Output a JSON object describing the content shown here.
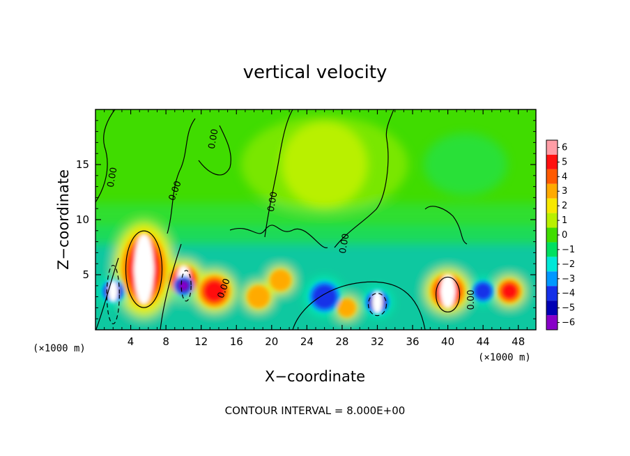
{
  "chart_data": {
    "type": "heatmap",
    "title": "vertical velocity",
    "xlabel": "X−coordinate",
    "ylabel": "Z−coordinate",
    "x_unit_label": "(×1000 m)",
    "x_unit_label_right": "(×1000 m)",
    "xlim": [
      0,
      50
    ],
    "ylim": [
      0,
      20
    ],
    "x_ticks": [
      4,
      8,
      12,
      16,
      20,
      24,
      28,
      32,
      36,
      40,
      44,
      48
    ],
    "y_ticks": [
      5,
      10,
      15
    ],
    "colorbar": {
      "levels": [
        "6",
        "5",
        "4",
        "3",
        "2",
        "1",
        "0",
        "−1",
        "−2",
        "−3",
        "−4",
        "−5",
        "−6"
      ],
      "colors": [
        "#ff9da6",
        "#ff1010",
        "#ff5a00",
        "#ffaa00",
        "#f7e800",
        "#b9f000",
        "#40dc00",
        "#00e060",
        "#00e8d8",
        "#0098ff",
        "#1530e8",
        "#0000b4",
        "#8800c8"
      ]
    },
    "contour_labels": [
      "0.00",
      "0.00",
      "0.00",
      "0.00",
      "0.00",
      "0.00",
      "0.00"
    ],
    "features": [
      {
        "x": 5.5,
        "z": 5.5,
        "w": 0.26,
        "value": 22
      },
      {
        "x": 10.0,
        "z": 4.5,
        "w": 0.15,
        "value": 8
      },
      {
        "x": 13.5,
        "z": 3.5,
        "w": 0.16,
        "value": 5
      },
      {
        "x": 18.5,
        "z": 3.0,
        "w": 0.09,
        "value": 3
      },
      {
        "x": 21.0,
        "z": 4.5,
        "w": 0.08,
        "value": 3
      },
      {
        "x": 28.5,
        "z": 2.0,
        "w": 0.06,
        "value": 3
      },
      {
        "x": 40.0,
        "z": 3.5,
        "w": 0.18,
        "value": 10
      },
      {
        "x": 47.0,
        "z": 3.5,
        "w": 0.1,
        "value": 5
      },
      {
        "x": 2.0,
        "z": 3.5,
        "w": 0.09,
        "value": -14
      },
      {
        "x": 10.0,
        "z": 4.0,
        "w": 0.07,
        "value": -6
      },
      {
        "x": 32.0,
        "z": 2.5,
        "w": 0.1,
        "value": -10
      },
      {
        "x": 26.0,
        "z": 3.0,
        "w": 0.15,
        "value": -4
      },
      {
        "x": 44.0,
        "z": 3.5,
        "w": 0.08,
        "value": -4
      },
      {
        "x": 26.0,
        "z": 15.0,
        "w": 0.4,
        "value": 1
      }
    ]
  },
  "note": "CONTOUR INTERVAL = 8.000E+00"
}
